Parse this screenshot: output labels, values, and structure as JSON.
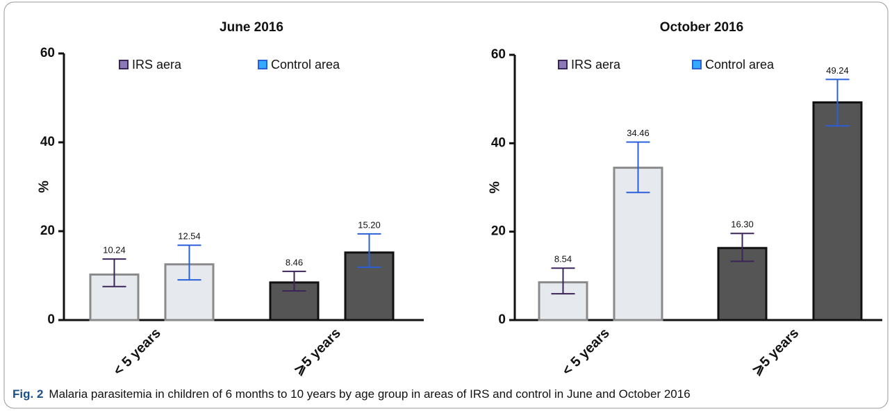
{
  "chart_data": [
    {
      "type": "bar",
      "title": "June 2016",
      "ylabel": "%",
      "categories": [
        "< 5 years",
        "⩾5 years"
      ],
      "category_colors": [
        "#e6e9ee",
        "#555555"
      ],
      "category_edges": [
        "#8a8a8a",
        "#111111"
      ],
      "series": [
        {
          "name": "IRS aera",
          "color": "#3b2457",
          "marker_color": "#8a7ab5",
          "values": [
            10.24,
            8.46
          ],
          "value_labels": [
            "10.24",
            "8.46"
          ],
          "err_plus": [
            3.5,
            2.5
          ],
          "err_minus": [
            2.7,
            1.9
          ]
        },
        {
          "name": "Control area",
          "color": "#2a5fd8",
          "marker_color": "#33aaff",
          "values": [
            12.54,
            15.2
          ],
          "value_labels": [
            "12.54",
            "15.20"
          ],
          "err_plus": [
            4.3,
            4.2
          ],
          "err_minus": [
            3.5,
            3.3
          ]
        }
      ],
      "ylim": [
        0,
        60
      ],
      "yticks": [
        0,
        20,
        40,
        60
      ]
    },
    {
      "type": "bar",
      "title": "October 2016",
      "ylabel": "%",
      "categories": [
        "< 5 years",
        "⩾5 years"
      ],
      "category_colors": [
        "#e6e9ee",
        "#555555"
      ],
      "category_edges": [
        "#8a8a8a",
        "#111111"
      ],
      "series": [
        {
          "name": "IRS aera",
          "color": "#3b2457",
          "marker_color": "#8a7ab5",
          "values": [
            8.54,
            16.3
          ],
          "value_labels": [
            "8.54",
            "16.30"
          ],
          "err_plus": [
            3.2,
            3.3
          ],
          "err_minus": [
            2.6,
            3.0
          ]
        },
        {
          "name": "Control area",
          "color": "#2a5fd8",
          "marker_color": "#33aaff",
          "values": [
            34.46,
            49.24
          ],
          "value_labels": [
            "34.46",
            "49.24"
          ],
          "err_plus": [
            5.8,
            5.2
          ],
          "err_minus": [
            5.6,
            5.3
          ]
        }
      ],
      "ylim": [
        0,
        60
      ],
      "yticks": [
        0,
        20,
        40,
        60
      ]
    }
  ],
  "caption": {
    "label": "Fig. 2",
    "text": "Malaria parasitemia in children of 6 months to 10 years by age group in areas of IRS and control in June and October 2016"
  }
}
